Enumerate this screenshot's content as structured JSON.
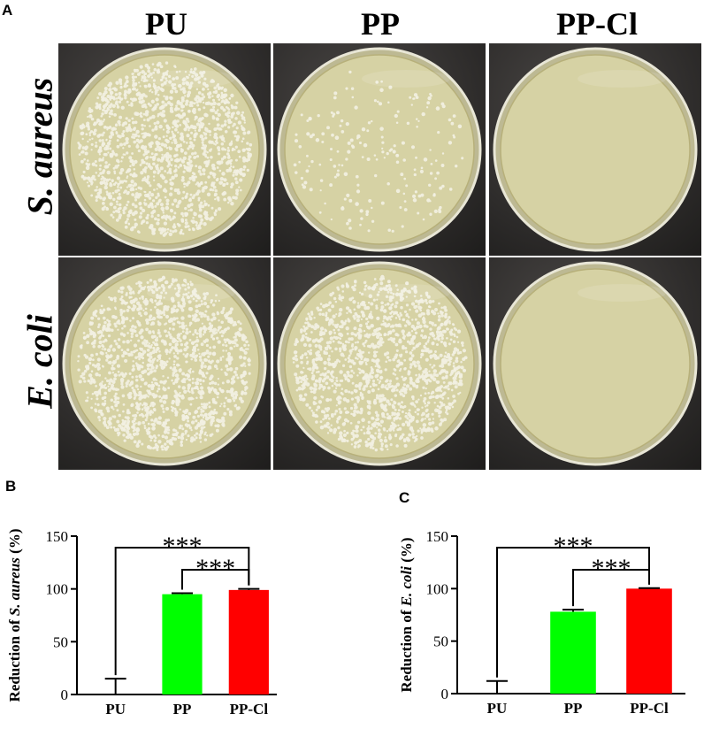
{
  "figure": {
    "panels": {
      "a": "A",
      "b": "B",
      "c": "C"
    },
    "columns": [
      "PU",
      "PP",
      "PP-Cl"
    ],
    "rows": [
      "S. aureus",
      "E. coli"
    ]
  },
  "plates": [
    {
      "row": "S. aureus",
      "column": "PU",
      "colony_level": "dense"
    },
    {
      "row": "S. aureus",
      "column": "PP",
      "colony_level": "sparse"
    },
    {
      "row": "S. aureus",
      "column": "PP-Cl",
      "colony_level": "none"
    },
    {
      "row": "E. coli",
      "column": "PU",
      "colony_level": "dense"
    },
    {
      "row": "E. coli",
      "column": "PP",
      "colony_level": "dense"
    },
    {
      "row": "E. coli",
      "column": "PP-Cl",
      "colony_level": "none"
    }
  ],
  "colors": {
    "PU": "#000000",
    "PP": "#00ff00",
    "PP-Cl": "#ff0000",
    "agar": "#d6d2a4",
    "background": "#2f2d2c"
  },
  "chart_data": [
    {
      "type": "bar",
      "panel": "B",
      "categories": [
        "PU",
        "PP",
        "PP-Cl"
      ],
      "values": [
        0,
        95,
        99
      ],
      "errors": [
        15,
        1,
        1
      ],
      "ylabel_prefix": "Reduction of ",
      "ylabel_italic": "S. aureus",
      "ylabel_suffix": " (%)",
      "ylim": [
        0,
        150
      ],
      "yticks": [
        0,
        50,
        100,
        150
      ],
      "significance": [
        {
          "from": "PU",
          "to": "PP-Cl",
          "label": "***"
        },
        {
          "from": "PP",
          "to": "PP-Cl",
          "label": "***"
        }
      ]
    },
    {
      "type": "bar",
      "panel": "C",
      "categories": [
        "PU",
        "PP",
        "PP-Cl"
      ],
      "values": [
        0,
        78,
        100
      ],
      "errors": [
        12,
        2,
        0.5
      ],
      "ylabel_prefix": "Reduction of ",
      "ylabel_italic": "E. coli",
      "ylabel_suffix": " (%)",
      "ylim": [
        0,
        150
      ],
      "yticks": [
        0,
        50,
        100,
        150
      ],
      "significance": [
        {
          "from": "PU",
          "to": "PP-Cl",
          "label": "***"
        },
        {
          "from": "PP",
          "to": "PP-Cl",
          "label": "***"
        }
      ]
    }
  ]
}
